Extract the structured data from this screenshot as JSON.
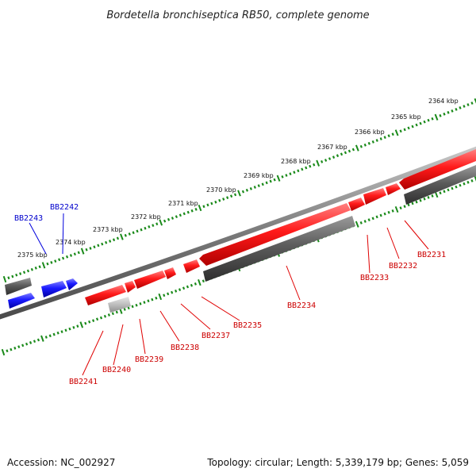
{
  "title": "Bordetella bronchiseptica RB50, complete genome",
  "footer": {
    "accession": "Accession: NC_002927",
    "topology": "Topology: circular; Length: 5,339,179 bp; Genes: 5,059"
  },
  "colors": {
    "forward_gene": "#ff1a1a",
    "hypothetical_gene": "#5c5c5c",
    "pseudo_gene": "#bdbdbd",
    "highlight_gene": "#1a1aff",
    "tick": "#1a8a1a",
    "backbone": "#8a8a8a"
  },
  "ruler": {
    "ticks": [
      {
        "label": "2364 kbp"
      },
      {
        "label": "2365 kbp"
      },
      {
        "label": "2366 kbp"
      },
      {
        "label": "2367 kbp"
      },
      {
        "label": "2368 kbp"
      },
      {
        "label": "2369 kbp"
      },
      {
        "label": "2370 kbp"
      },
      {
        "label": "2371 kbp"
      },
      {
        "label": "2372 kbp"
      },
      {
        "label": "2373 kbp"
      },
      {
        "label": "2374 kbp"
      },
      {
        "label": "2375 kbp"
      }
    ]
  },
  "genes": [
    {
      "id": "BB2231",
      "color": "red"
    },
    {
      "id": "BB2232",
      "color": "red"
    },
    {
      "id": "BB2233",
      "color": "red"
    },
    {
      "id": "BB2234",
      "color": "red"
    },
    {
      "id": "BB2235",
      "color": "red"
    },
    {
      "id": "BB2237",
      "color": "red"
    },
    {
      "id": "BB2238",
      "color": "red"
    },
    {
      "id": "BB2239",
      "color": "red"
    },
    {
      "id": "BB2240",
      "color": "red"
    },
    {
      "id": "BB2241",
      "color": "red"
    },
    {
      "id": "BB2242",
      "color": "blue"
    },
    {
      "id": "BB2243",
      "color": "blue"
    }
  ]
}
